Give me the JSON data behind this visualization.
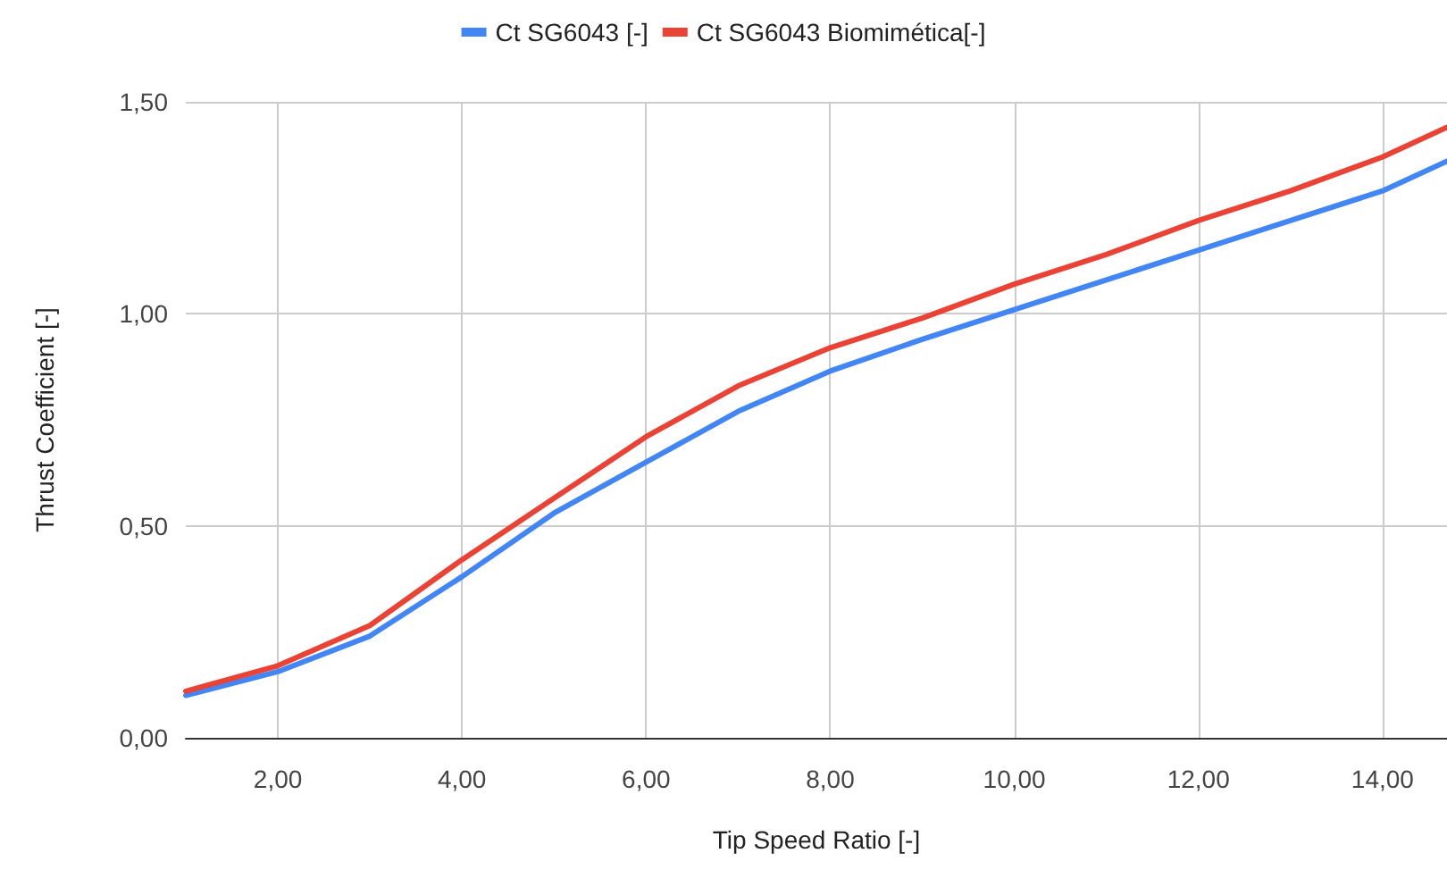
{
  "chart_data": {
    "type": "line",
    "xlabel": "Tip Speed Ratio [-]",
    "ylabel": "Thrust Coefficient [-]",
    "x": [
      1,
      2,
      3,
      4,
      5,
      6,
      7,
      8,
      9,
      10,
      11,
      12,
      13,
      14,
      14.7
    ],
    "series": [
      {
        "name": "Ct SG6043 [-]",
        "color": "#4285f4",
        "values": [
          0.1,
          0.156,
          0.24,
          0.38,
          0.53,
          0.65,
          0.77,
          0.865,
          0.94,
          1.01,
          1.08,
          1.15,
          1.22,
          1.29,
          1.36
        ]
      },
      {
        "name": "Ct SG6043 Biomimética[-]",
        "color": "#ea4335",
        "values": [
          0.11,
          0.17,
          0.265,
          0.42,
          0.565,
          0.71,
          0.83,
          0.92,
          0.99,
          1.07,
          1.14,
          1.22,
          1.29,
          1.37,
          1.44
        ]
      }
    ],
    "xlim": [
      1,
      14.7
    ],
    "xticks": [
      {
        "value": 2,
        "label": "2,00"
      },
      {
        "value": 4,
        "label": "4,00"
      },
      {
        "value": 6,
        "label": "6,00"
      },
      {
        "value": 8,
        "label": "8,00"
      },
      {
        "value": 10,
        "label": "10,00"
      },
      {
        "value": 12,
        "label": "12,00"
      },
      {
        "value": 14,
        "label": "14,00"
      }
    ],
    "ylim": [
      0,
      1.5
    ],
    "yticks": [
      {
        "value": 0,
        "label": "0,00"
      },
      {
        "value": 0.5,
        "label": "0,50"
      },
      {
        "value": 1,
        "label": "1,00"
      },
      {
        "value": 1.5,
        "label": "1,50"
      }
    ],
    "grid": true,
    "legend": "top",
    "marker": "none",
    "line_style": "solid"
  }
}
